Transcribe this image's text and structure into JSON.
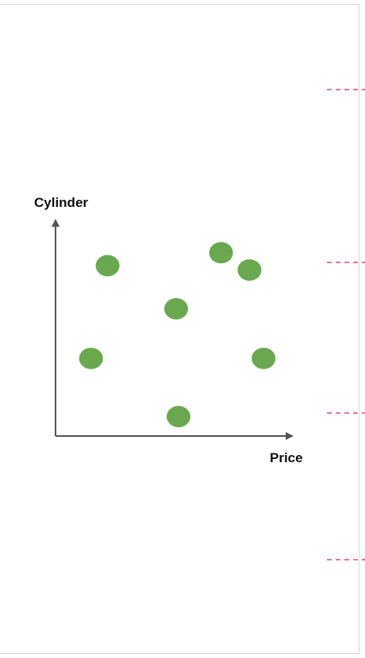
{
  "chart_data": {
    "type": "scatter",
    "xlabel": "Price",
    "ylabel": "Cylinder",
    "points": [
      {
        "x": 0.22,
        "y": 0.79
      },
      {
        "x": 0.7,
        "y": 0.85
      },
      {
        "x": 0.82,
        "y": 0.77
      },
      {
        "x": 0.51,
        "y": 0.59
      },
      {
        "x": 0.15,
        "y": 0.36
      },
      {
        "x": 0.88,
        "y": 0.36
      },
      {
        "x": 0.52,
        "y": 0.09
      }
    ],
    "xlim": [
      0,
      1
    ],
    "ylim": [
      0,
      1
    ],
    "grid": false,
    "marker_color": "#6aa84f",
    "axis_color": "#555555"
  },
  "guides": {
    "color": "#e0457b",
    "count": 4
  }
}
